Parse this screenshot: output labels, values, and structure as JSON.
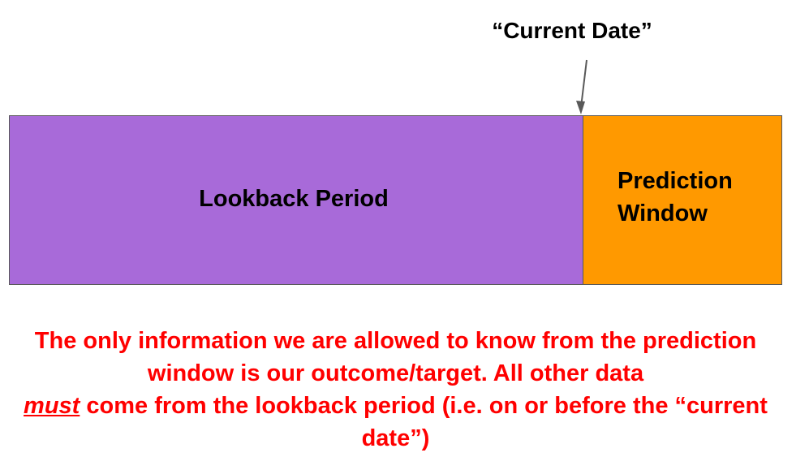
{
  "marker": {
    "label": "“Current Date”"
  },
  "timeline": {
    "lookback_label": "Lookback Period",
    "prediction_label": "Prediction Window"
  },
  "note": {
    "line_before_emphasis": "The only information we are allowed to know from the prediction window is our outcome/target. All other data",
    "emphasis": "must",
    "line_after_emphasis": " come from the lookback period (i.e. on or before the “current date”)"
  },
  "colors": {
    "lookback_fill": "#a86ad9",
    "prediction_fill": "#ff9900",
    "note_text": "#ff0000",
    "border": "#595959"
  }
}
